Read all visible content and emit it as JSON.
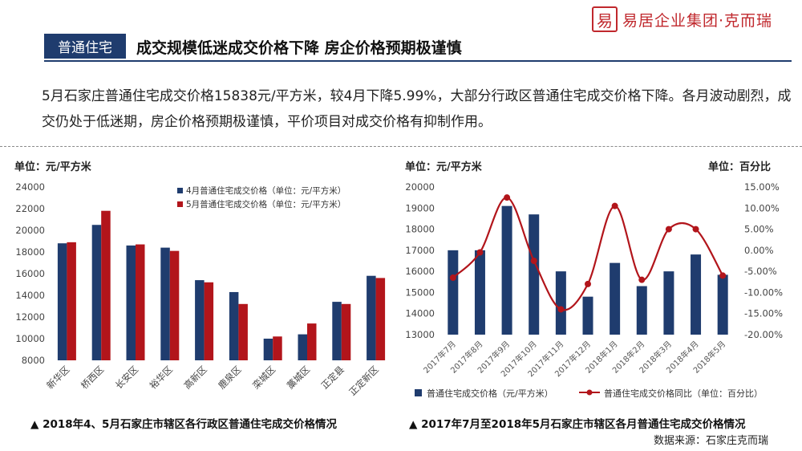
{
  "logo": {
    "mark": "易",
    "text": "易居企业集团·克而瑞"
  },
  "header": {
    "tag": "普通住宅",
    "headline": "成交规模低迷成交价格下降 房企价格预期极谨慎"
  },
  "summary": "5月石家庄普通住宅成交价格15838元/平方米，较4月下降5.99%，大部分行政区普通住宅成交价格下降。各月波动剧烈，成交仍处于低迷期，房企价格预期极谨慎，平价项目对成交价格有抑制作用。",
  "left_chart": {
    "unit_label": "单位：元/平方米",
    "caption": "▲ 2018年4、5月石家庄市辖区各行政区普通住宅成交价格情况"
  },
  "right_chart": {
    "unit_label_left": "单位：元/平方米",
    "unit_label_right": "单位：百分比",
    "caption": "▲ 2017年7月至2018年5月石家庄市辖区各月普通住宅成交价格情况"
  },
  "source": "数据来源：石家庄克而瑞",
  "colors": {
    "navy": "#1f3c6e",
    "red": "#c0282d",
    "dark_red": "#b2151b"
  },
  "chart_data": [
    {
      "type": "bar",
      "categories": [
        "新华区",
        "桥西区",
        "长安区",
        "裕华区",
        "高新区",
        "鹿泉区",
        "栾城区",
        "藁城区",
        "正定县",
        "正定新区"
      ],
      "series": [
        {
          "name": "4月普通住宅成交价格（单位：元/平方米）",
          "values": [
            18800,
            20500,
            18600,
            18400,
            15400,
            14300,
            10000,
            10400,
            13400,
            15800
          ]
        },
        {
          "name": "5月普通住宅成交价格（单位：元/平方米）",
          "values": [
            18900,
            21800,
            18700,
            18100,
            15200,
            13200,
            10200,
            11400,
            13200,
            15600
          ]
        }
      ],
      "ylim": [
        8000,
        24000
      ],
      "yticks": [
        8000,
        10000,
        12000,
        14000,
        16000,
        18000,
        20000,
        22000,
        24000
      ],
      "legend": "top-right",
      "grid": false
    },
    {
      "type": "bar",
      "categories": [
        "2017年7月",
        "2017年8月",
        "2017年9月",
        "2017年10月",
        "2017年11月",
        "2017年12月",
        "2018年1月",
        "2018年2月",
        "2018年3月",
        "2018年4月",
        "2018年5月"
      ],
      "series": [
        {
          "name": "普通住宅成交价格（元/平方米）",
          "type": "bar",
          "axis": "left",
          "values": [
            17000,
            17000,
            19100,
            18700,
            16000,
            14800,
            16400,
            15300,
            16000,
            16800,
            15838
          ]
        },
        {
          "name": "普通住宅成交价格同比（单位：百分比）",
          "type": "line",
          "axis": "right",
          "values": [
            -6.5,
            -0.5,
            12.5,
            -2.5,
            -14.0,
            -8.0,
            10.5,
            -7.0,
            5.0,
            5.0,
            -6.0
          ]
        }
      ],
      "ylim": [
        13000,
        20000
      ],
      "yticks": [
        13000,
        14000,
        15000,
        16000,
        17000,
        18000,
        19000,
        20000
      ],
      "y2lim": [
        -20,
        15
      ],
      "y2ticks": [
        "-20.00%",
        "-15.00%",
        "-10.00%",
        "-5.00%",
        "0.00%",
        "5.00%",
        "10.00%",
        "15.00%"
      ],
      "legend": "bottom",
      "grid": false
    }
  ]
}
